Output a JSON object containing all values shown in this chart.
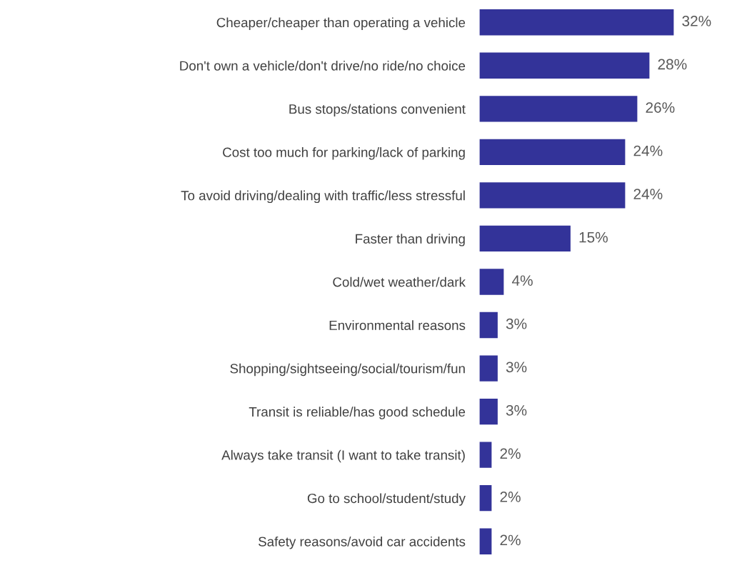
{
  "chart_data": {
    "type": "bar",
    "orientation": "horizontal",
    "categories": [
      "Cheaper/cheaper than operating a vehicle",
      "Don't own a vehicle/don't drive/no ride/no choice",
      "Bus stops/stations convenient",
      "Cost too much for parking/lack of parking",
      "To avoid driving/dealing with traffic/less stressful",
      "Faster than driving",
      "Cold/wet weather/dark",
      "Environmental reasons",
      "Shopping/sightseeing/social/tourism/fun",
      "Transit is reliable/has good schedule",
      "Always take transit (I want to take transit)",
      "Go to school/student/study",
      "Safety reasons/avoid car accidents"
    ],
    "values": [
      32,
      28,
      26,
      24,
      24,
      15,
      4,
      3,
      3,
      3,
      2,
      2,
      2
    ],
    "value_labels": [
      "32%",
      "28%",
      "26%",
      "24%",
      "24%",
      "15%",
      "4%",
      "3%",
      "3%",
      "3%",
      "2%",
      "2%",
      "2%"
    ],
    "color": "#333399",
    "grid": false,
    "legend": false
  }
}
